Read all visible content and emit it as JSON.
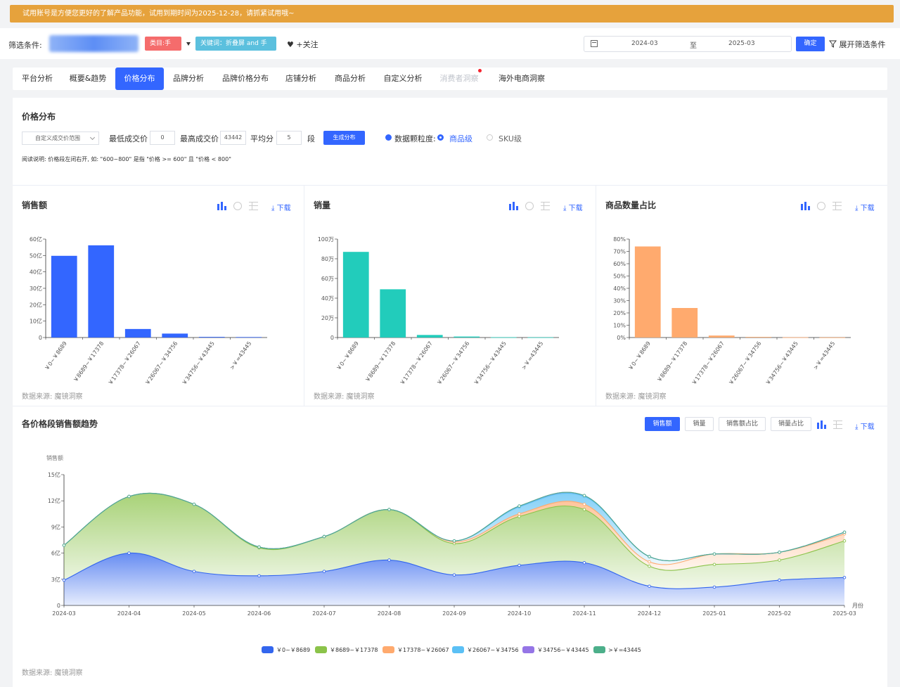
{
  "banner": {
    "text": "试用账号是方便您更好的了解产品功能，试用到期时间为2025-12-28，请抓紧试用哦~"
  },
  "filter": {
    "label": "筛选条件:",
    "category_tag": "类目:手机",
    "keyword_tag": "关键词：折叠屏 and 手机",
    "follow": "♥ +关注",
    "date_start": "2024-03",
    "date_sep": "至",
    "date_end": "2025-03",
    "confirm": "确定",
    "expand": "展开筛选条件"
  },
  "tabs": [
    {
      "label": "平台分析"
    },
    {
      "label": "概要&趋势"
    },
    {
      "label": "价格分布"
    },
    {
      "label": "品牌分析"
    },
    {
      "label": "品牌价格分布"
    },
    {
      "label": "店铺分析"
    },
    {
      "label": "商品分析"
    },
    {
      "label": "自定义分析"
    },
    {
      "label": "消费者洞察"
    },
    {
      "label": "海外电商洞察"
    }
  ],
  "controls": {
    "title": "价格分布",
    "range_select": "自定义成交价范围",
    "min_label": "最低成交价",
    "min_value": "0",
    "max_label": "最高成交价",
    "max_value": "43442",
    "split_label": "平均分",
    "split_value": "5",
    "seg_label": "段",
    "generate": "生成分布",
    "granularity_label": "数据颗粒度:",
    "opt_product": "商品级",
    "opt_sku": "SKU级",
    "note": "阅读说明: 价格段左闭右开, 如: \"600~800\" 是指 \"价格 >= 600\" 且 \"价格 < 800\""
  },
  "common": {
    "download": "下载",
    "source": "数据来源: 魔镜洞察"
  },
  "colors": {
    "accent": "#3366ff",
    "bar1": "#3366ff",
    "bar2": "#22ccbb",
    "bar3": "#ffaa6e",
    "warning": "#e6a23c"
  },
  "chart_data": [
    {
      "type": "bar",
      "title": "销售额",
      "categories": [
        "￥0~￥8689",
        "￥8689~￥17378",
        "￥17378~￥26067",
        "￥26067~￥34756",
        "￥34756~￥43445",
        ">￥=43445"
      ],
      "values": [
        49.8,
        56.2,
        5.2,
        2.4,
        0.4,
        0.3
      ],
      "ylim": [
        0,
        60
      ],
      "yticks": [
        "0",
        "10亿",
        "20亿",
        "30亿",
        "40亿",
        "50亿",
        "60亿"
      ]
    },
    {
      "type": "bar",
      "title": "销量",
      "categories": [
        "￥0~￥8689",
        "￥8689~￥17378",
        "￥17378~￥26067",
        "￥26067~￥34756",
        "￥34756~￥43445",
        ">￥=43445"
      ],
      "values": [
        87,
        49,
        2.6,
        1.0,
        0.3,
        0.2
      ],
      "ylim": [
        0,
        100
      ],
      "yticks": [
        "0",
        "20万",
        "40万",
        "60万",
        "80万",
        "100万"
      ]
    },
    {
      "type": "bar",
      "title": "商品数量占比",
      "categories": [
        "￥0~￥8689",
        "￥8689~￥17378",
        "￥17378~￥26067",
        "￥26067~￥34756",
        "￥34756~￥43445",
        ">￥=43445"
      ],
      "values": [
        74,
        24,
        1.6,
        0.5,
        0.2,
        0.1
      ],
      "ylim": [
        0,
        80
      ],
      "yticks": [
        "0%",
        "10%",
        "20%",
        "30%",
        "40%",
        "50%",
        "60%",
        "70%",
        "80%"
      ]
    },
    {
      "type": "area",
      "title": "各价格段销售额趋势",
      "ylabel": "销售额",
      "xlabel": "月份",
      "ylim": [
        0,
        15
      ],
      "yticks": [
        "0",
        "3亿",
        "6亿",
        "9亿",
        "12亿",
        "15亿"
      ],
      "x": [
        "2024-03",
        "2024-04",
        "2024-05",
        "2024-06",
        "2024-07",
        "2024-08",
        "2024-09",
        "2024-10",
        "2024-11",
        "2024-12",
        "2025-01",
        "2025-02",
        "2025-03"
      ],
      "stacked": true,
      "series": [
        {
          "name": "￥0~￥8689",
          "color": "#3366ee",
          "values": [
            2.9,
            6.0,
            3.9,
            3.4,
            3.9,
            5.2,
            3.5,
            4.6,
            4.9,
            2.2,
            2.1,
            2.9,
            3.2
          ]
        },
        {
          "name": "￥8689~￥17378",
          "color": "#8bc34a",
          "values": [
            4.0,
            6.5,
            7.7,
            3.2,
            4.0,
            5.8,
            3.6,
            5.6,
            6.1,
            2.3,
            2.6,
            2.3,
            4.2
          ]
        },
        {
          "name": "￥17378~￥26067",
          "color": "#ffaa6e",
          "values": [
            0.0,
            0.0,
            0.0,
            0.1,
            0.0,
            0.0,
            0.2,
            0.3,
            0.6,
            0.5,
            1.2,
            0.9,
            0.8
          ]
        },
        {
          "name": "￥26067~￥34756",
          "color": "#5bc0f5",
          "values": [
            0.0,
            0.0,
            0.0,
            0.0,
            0.0,
            0.0,
            0.1,
            0.8,
            0.9,
            0.6,
            0.0,
            0.0,
            0.2
          ]
        },
        {
          "name": "￥34756~￥43445",
          "color": "#9575e6",
          "values": [
            0.0,
            0.0,
            0.0,
            0.0,
            0.0,
            0.0,
            0.0,
            0.1,
            0.1,
            0.0,
            0.0,
            0.0,
            0.0
          ]
        },
        {
          "name": ">￥=43445",
          "color": "#4caf8a",
          "values": [
            0.0,
            0.0,
            0.0,
            0.0,
            0.0,
            0.0,
            0.0,
            0.0,
            0.0,
            0.0,
            0.0,
            0.0,
            0.0
          ]
        }
      ]
    }
  ],
  "trend_buttons": [
    "销售额",
    "销量",
    "销售额占比",
    "销量占比"
  ]
}
